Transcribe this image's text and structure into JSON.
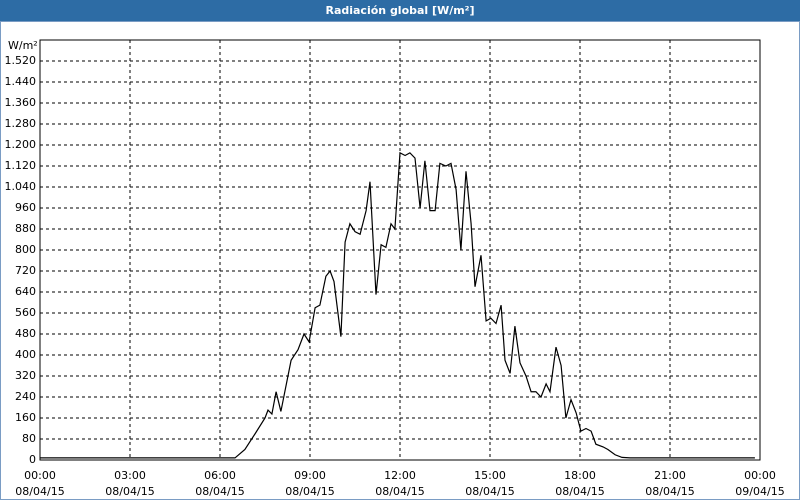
{
  "chart_data": {
    "type": "line",
    "title": "Radiación global [W/m²]",
    "y_label": "W/m²",
    "x": [
      0,
      6.5,
      6.83,
      7.17,
      7.5,
      7.6,
      7.73,
      7.87,
      8.03,
      8.37,
      8.6,
      8.8,
      8.97,
      9.17,
      9.33,
      9.53,
      9.67,
      9.8,
      10.03,
      10.17,
      10.33,
      10.5,
      10.67,
      10.87,
      11.0,
      11.2,
      11.37,
      11.53,
      11.7,
      11.83,
      12.0,
      12.17,
      12.33,
      12.5,
      12.67,
      12.83,
      13.0,
      13.17,
      13.33,
      13.53,
      13.7,
      13.87,
      14.03,
      14.2,
      14.37,
      14.5,
      14.7,
      14.87,
      15.03,
      15.2,
      15.37,
      15.5,
      15.67,
      15.83,
      16.0,
      16.2,
      16.37,
      16.53,
      16.7,
      16.87,
      17.0,
      17.2,
      17.37,
      17.53,
      17.7,
      17.87,
      18.03,
      18.2,
      18.37,
      18.53,
      18.77,
      18.93,
      19.17,
      19.4,
      19.67,
      23.83
    ],
    "series": [
      {
        "name": "Radiación global",
        "color": "#000000",
        "values": [
          8,
          8,
          40,
          100,
          160,
          190,
          175,
          260,
          185,
          380,
          420,
          480,
          450,
          580,
          590,
          700,
          720,
          680,
          470,
          830,
          900,
          870,
          860,
          950,
          1060,
          630,
          820,
          810,
          900,
          880,
          1170,
          1160,
          1170,
          1150,
          960,
          1140,
          950,
          950,
          1130,
          1120,
          1130,
          1030,
          800,
          1100,
          900,
          660,
          780,
          530,
          540,
          520,
          590,
          380,
          330,
          510,
          370,
          320,
          260,
          260,
          240,
          290,
          260,
          430,
          360,
          160,
          230,
          180,
          110,
          120,
          110,
          60,
          50,
          40,
          20,
          10,
          8,
          8
        ]
      }
    ],
    "xlim": [
      0,
      24
    ],
    "ylim": [
      0,
      1600
    ],
    "xticks": [
      {
        "value": 0,
        "label": "00:00"
      },
      {
        "value": 3,
        "label": "03:00"
      },
      {
        "value": 6,
        "label": "06:00"
      },
      {
        "value": 9,
        "label": "09:00"
      },
      {
        "value": 12,
        "label": "12:00"
      },
      {
        "value": 15,
        "label": "15:00"
      },
      {
        "value": 18,
        "label": "18:00"
      },
      {
        "value": 21,
        "label": "21:00"
      },
      {
        "value": 24,
        "label": "00:00"
      }
    ],
    "xtick_dates": [
      "08/04/15",
      "08/04/15",
      "08/04/15",
      "08/04/15",
      "08/04/15",
      "08/04/15",
      "08/04/15",
      "08/04/15",
      "09/04/15"
    ],
    "yticks": [
      0,
      80,
      160,
      240,
      320,
      400,
      480,
      560,
      640,
      720,
      800,
      880,
      960,
      {
        "value": 1040,
        "label": "1.040"
      },
      {
        "value": 1120,
        "label": "1.120"
      },
      {
        "value": 1200,
        "label": "1.200"
      },
      {
        "value": 1280,
        "label": "1.280"
      },
      {
        "value": 1360,
        "label": "1.360"
      },
      {
        "value": 1440,
        "label": "1.440"
      },
      {
        "value": 1520,
        "label": "1.520"
      }
    ],
    "grid": true
  }
}
